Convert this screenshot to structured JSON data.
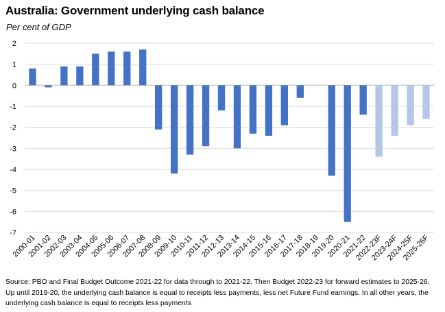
{
  "title": "Australia: Government underlying cash balance",
  "subtitle": "Per cent of GDP",
  "source": "Source: PBO and Final Budget Outcome 2021-22 for data through to 2021-22. Then Budget 2022-23 for forward estimates to 2025-26. Up until 2019-20, the underlying cash balance is equal to receipts less payments, less net Future Fund earnings. In all other years, the underlying cash balance is equal to receipts less payments",
  "colors": {
    "actual": "#4472C4",
    "forecast": "#B4C7E7",
    "grid": "#D9D9D9",
    "axis": "#BFBFBF"
  },
  "chart_data": {
    "type": "bar",
    "title": "Australia: Government underlying cash balance",
    "subtitle": "Per cent of GDP",
    "xlabel": "",
    "ylabel": "",
    "ylim": [
      -7,
      2
    ],
    "yticks": [
      2,
      1,
      0,
      -1,
      -2,
      -3,
      -4,
      -5,
      -6,
      -7
    ],
    "grid": true,
    "legend": "none",
    "categories": [
      "2000-01",
      "2001-02",
      "2002-03",
      "2003-04",
      "2004-05",
      "2005-06",
      "2006-07",
      "2007-08",
      "2008-09",
      "2009-10",
      "2010-11",
      "2011-12",
      "2012-13",
      "2013-14",
      "2014-15",
      "2015-16",
      "2016-17",
      "2017-18",
      "2018-19",
      "2019-20",
      "2020-21",
      "2021-22",
      "2022-23F",
      "2023-24F",
      "2024-25F",
      "2025-26F"
    ],
    "values": [
      0.8,
      -0.1,
      0.9,
      0.9,
      1.5,
      1.6,
      1.6,
      1.7,
      -2.1,
      -4.2,
      -3.3,
      -2.9,
      -1.2,
      -3.0,
      -2.3,
      -2.4,
      -1.9,
      -0.6,
      0.0,
      -4.3,
      -6.5,
      -1.4,
      -3.4,
      -2.4,
      -1.9,
      -1.6
    ],
    "forecast": [
      false,
      false,
      false,
      false,
      false,
      false,
      false,
      false,
      false,
      false,
      false,
      false,
      false,
      false,
      false,
      false,
      false,
      false,
      false,
      false,
      false,
      false,
      true,
      true,
      true,
      true
    ]
  }
}
